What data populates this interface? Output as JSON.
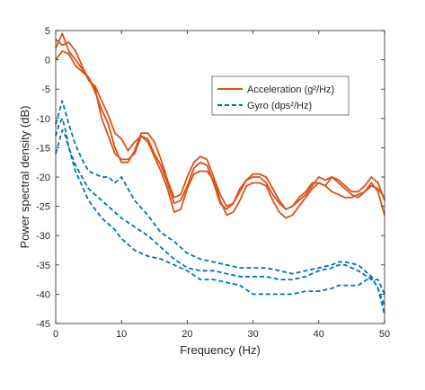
{
  "chart_data": {
    "type": "line",
    "xlabel": "Frequency (Hz)",
    "ylabel": "Power spectral density (dB)",
    "xlim": [
      0,
      50
    ],
    "ylim": [
      -45,
      5
    ],
    "xticks": [
      0,
      10,
      20,
      30,
      40,
      50
    ],
    "yticks": [
      -45,
      -40,
      -35,
      -30,
      -25,
      -20,
      -15,
      -10,
      -5,
      0,
      5
    ],
    "grid": false,
    "legend_position": "top-right",
    "legend": [
      {
        "label": "Acceleration (g²/Hz)",
        "color": "#d95319",
        "dash": "solid"
      },
      {
        "label": "Gyro (dps²/Hz)",
        "color": "#0072bd",
        "dash": "dashed"
      }
    ],
    "series": [
      {
        "group": "acceleration",
        "color": "#d95319",
        "dash": "solid",
        "x": [
          0,
          1,
          2,
          3,
          4,
          5,
          6,
          7,
          8,
          9,
          10,
          11,
          12,
          13,
          14,
          15,
          16,
          17,
          18,
          19,
          20,
          21,
          22,
          23,
          24,
          25,
          26,
          27,
          28,
          29,
          30,
          31,
          32,
          33,
          34,
          35,
          36,
          37,
          38,
          39,
          40,
          41,
          42,
          43,
          44,
          45,
          46,
          47,
          48,
          49,
          50
        ],
        "y": [
          2,
          4.5,
          1.5,
          0,
          -1.5,
          -3,
          -5.5,
          -8.5,
          -11,
          -15,
          -17.5,
          -17.5,
          -15.5,
          -12.5,
          -12.5,
          -14,
          -17,
          -20.5,
          -23.5,
          -23,
          -20,
          -17.5,
          -16.5,
          -17,
          -20,
          -23,
          -25,
          -24.5,
          -22.5,
          -20.5,
          -19.5,
          -19.5,
          -20,
          -22,
          -24,
          -25.5,
          -25,
          -24,
          -23,
          -21.5,
          -20,
          -20.5,
          -20,
          -20.5,
          -21.5,
          -22.5,
          -22.5,
          -21.5,
          -20,
          -21,
          -24
        ]
      },
      {
        "group": "acceleration",
        "color": "#d95319",
        "dash": "solid",
        "x": [
          0,
          1,
          2,
          3,
          4,
          5,
          6,
          7,
          8,
          9,
          10,
          11,
          12,
          13,
          14,
          15,
          16,
          17,
          18,
          19,
          20,
          21,
          22,
          23,
          24,
          25,
          26,
          27,
          28,
          29,
          30,
          31,
          32,
          33,
          34,
          35,
          36,
          37,
          38,
          39,
          40,
          41,
          42,
          43,
          44,
          45,
          46,
          47,
          48,
          49,
          50
        ],
        "y": [
          3.5,
          2.5,
          3,
          1.5,
          -1,
          -3.5,
          -4.5,
          -7,
          -9.5,
          -12.5,
          -13.5,
          -15.5,
          -14,
          -13,
          -13.5,
          -16,
          -18,
          -21,
          -24.5,
          -24,
          -21.5,
          -18.5,
          -17.5,
          -18,
          -21,
          -24.5,
          -25.5,
          -24.5,
          -22,
          -20.5,
          -20,
          -20,
          -21,
          -23,
          -24.5,
          -25.5,
          -25,
          -23.5,
          -22.5,
          -21,
          -21,
          -21.5,
          -20,
          -21,
          -22,
          -23,
          -23.5,
          -22.5,
          -21,
          -22.5,
          -26.5
        ]
      },
      {
        "group": "acceleration",
        "color": "#d95319",
        "dash": "solid",
        "x": [
          0,
          1,
          2,
          3,
          4,
          5,
          6,
          7,
          8,
          9,
          10,
          11,
          12,
          13,
          14,
          15,
          16,
          17,
          18,
          19,
          20,
          21,
          22,
          23,
          24,
          25,
          26,
          27,
          28,
          29,
          30,
          31,
          32,
          33,
          34,
          35,
          36,
          37,
          38,
          39,
          40,
          41,
          42,
          43,
          44,
          45,
          46,
          47,
          48,
          49,
          50
        ],
        "y": [
          0,
          1.5,
          1,
          -1,
          -2,
          -3,
          -5,
          -10,
          -13,
          -16,
          -17,
          -17,
          -16,
          -13,
          -14,
          -16.5,
          -19,
          -22,
          -26,
          -25.5,
          -22,
          -19.5,
          -19,
          -19,
          -20.5,
          -24,
          -26.5,
          -26,
          -24,
          -21.5,
          -21,
          -21,
          -21.5,
          -24,
          -26,
          -27,
          -26.5,
          -25,
          -23.5,
          -22,
          -21,
          -21.5,
          -22.5,
          -23,
          -23.5,
          -23.5,
          -23,
          -22.5,
          -21.5,
          -22,
          -23.5
        ]
      },
      {
        "group": "gyro",
        "color": "#0072bd",
        "dash": "dashed",
        "x": [
          0,
          0.5,
          1,
          1.5,
          2,
          3,
          4,
          5,
          6,
          7,
          8,
          9,
          10,
          12,
          14,
          16,
          18,
          20,
          22,
          24,
          26,
          28,
          30,
          32,
          34,
          36,
          38,
          40,
          42,
          43,
          44,
          46,
          48,
          49,
          50
        ],
        "y": [
          -11,
          -9,
          -7,
          -9,
          -11,
          -14.5,
          -17,
          -19,
          -19.5,
          -20,
          -20,
          -21,
          -20,
          -24,
          -26.5,
          -29.5,
          -31,
          -33,
          -34,
          -34.5,
          -35,
          -35.5,
          -35.5,
          -35.5,
          -36,
          -36.5,
          -36,
          -35.5,
          -35,
          -34.5,
          -34.5,
          -35,
          -37,
          -39,
          -42
        ]
      },
      {
        "group": "gyro",
        "color": "#0072bd",
        "dash": "dashed",
        "x": [
          0,
          0.5,
          1,
          1.5,
          2,
          3,
          4,
          5,
          6,
          7,
          8,
          9,
          10,
          12,
          14,
          16,
          18,
          20,
          22,
          24,
          26,
          28,
          30,
          32,
          34,
          36,
          38,
          40,
          42,
          43,
          44,
          46,
          48,
          49,
          50
        ],
        "y": [
          -13,
          -11,
          -10,
          -12,
          -15,
          -18,
          -20,
          -22,
          -23,
          -24,
          -25,
          -26,
          -27,
          -28.5,
          -30,
          -32,
          -34,
          -35.5,
          -36,
          -36,
          -36.5,
          -37,
          -37,
          -37,
          -37.5,
          -37.5,
          -37,
          -36,
          -35.5,
          -35,
          -35,
          -36,
          -37.5,
          -37.5,
          -40
        ]
      },
      {
        "group": "gyro",
        "color": "#0072bd",
        "dash": "dashed",
        "x": [
          0,
          0.5,
          1,
          1.5,
          2,
          3,
          4,
          5,
          6,
          7,
          8,
          9,
          10,
          12,
          14,
          16,
          18,
          20,
          22,
          24,
          26,
          28,
          30,
          32,
          34,
          36,
          38,
          40,
          42,
          43,
          44,
          46,
          48,
          49,
          50
        ],
        "y": [
          -16,
          -14,
          -12,
          -13,
          -15,
          -19,
          -21.5,
          -24,
          -25.5,
          -27,
          -28,
          -29,
          -30.5,
          -32.5,
          -33.5,
          -34,
          -35,
          -36,
          -37.5,
          -37.5,
          -38,
          -38.5,
          -40,
          -40,
          -40,
          -40,
          -39.5,
          -39.5,
          -39,
          -38.5,
          -38.5,
          -38.5,
          -37,
          -39,
          -43.5
        ]
      }
    ]
  }
}
